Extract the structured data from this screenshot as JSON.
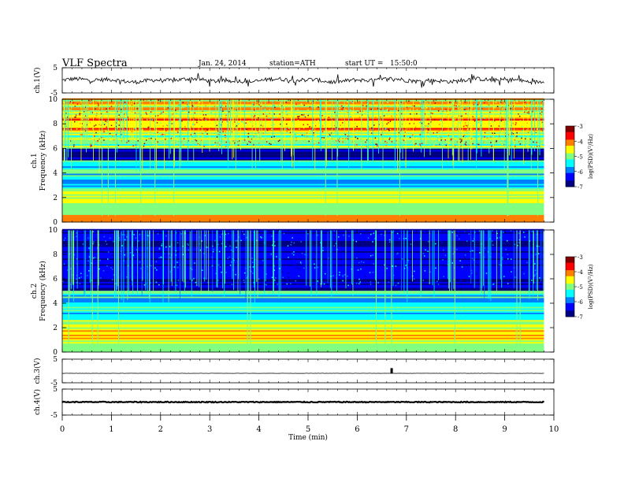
{
  "header": {
    "title": "VLF Spectra",
    "date": "Jan. 24, 2014",
    "station": "station=ATH",
    "start": "start UT =   15:50:0"
  },
  "colors": {
    "colormap": [
      "#000080",
      "#0000ff",
      "#0080ff",
      "#00ffff",
      "#80ff80",
      "#ffff00",
      "#ff8000",
      "#ff0000",
      "#800000"
    ]
  },
  "chart_data": [
    {
      "id": "ch1-waveform",
      "type": "line",
      "ylabel": "ch.1(V)",
      "ylim": [
        -5,
        5
      ],
      "yticks": [
        "5",
        "-5"
      ],
      "xlim": [
        0,
        10
      ],
      "trace_level": 0
    },
    {
      "id": "ch1-spectrogram",
      "type": "heatmap",
      "ylabel_top": "ch.1",
      "ylabel": "Frequency (kHz)",
      "ylim": [
        0,
        10
      ],
      "yticks": [
        "0",
        "2",
        "4",
        "6",
        "8",
        "10"
      ],
      "xlim": [
        0,
        10
      ],
      "data_end_min": 9.8,
      "colorbar": {
        "label": "log(PSD)(V²/Hz)",
        "range": [
          -7,
          -3
        ],
        "ticks": [
          "-3",
          "-4",
          "-5",
          "-6",
          "-7"
        ]
      }
    },
    {
      "id": "ch2-spectrogram",
      "type": "heatmap",
      "ylabel_top": "ch.2",
      "ylabel": "Frequency (kHz)",
      "ylim": [
        0,
        10
      ],
      "yticks": [
        "0",
        "2",
        "4",
        "6",
        "8",
        "10"
      ],
      "xlim": [
        0,
        10
      ],
      "data_end_min": 9.8,
      "colorbar": {
        "label": "log(PSD)(V²/Hz)",
        "range": [
          -7,
          -3
        ],
        "ticks": [
          "-3",
          "-4",
          "-5",
          "-6",
          "-7"
        ]
      }
    },
    {
      "id": "ch3-waveform",
      "type": "line",
      "ylabel": "ch.3(V)",
      "ylim": [
        -5,
        5
      ],
      "yticks": [
        "5",
        "-5"
      ],
      "xlim": [
        0,
        10
      ],
      "trace_level": -1,
      "spike_at_min": 6.7,
      "spike_level": 1.2
    },
    {
      "id": "ch4-waveform",
      "type": "line",
      "ylabel": "ch.4(V)",
      "ylim": [
        -5,
        5
      ],
      "yticks": [
        "5",
        "-5"
      ],
      "xlim": [
        0,
        10
      ],
      "trace_level": 0
    }
  ],
  "xaxis": {
    "label": "Time (min)",
    "ticks": [
      "0",
      "1",
      "2",
      "3",
      "4",
      "5",
      "6",
      "7",
      "8",
      "9",
      "10"
    ]
  }
}
